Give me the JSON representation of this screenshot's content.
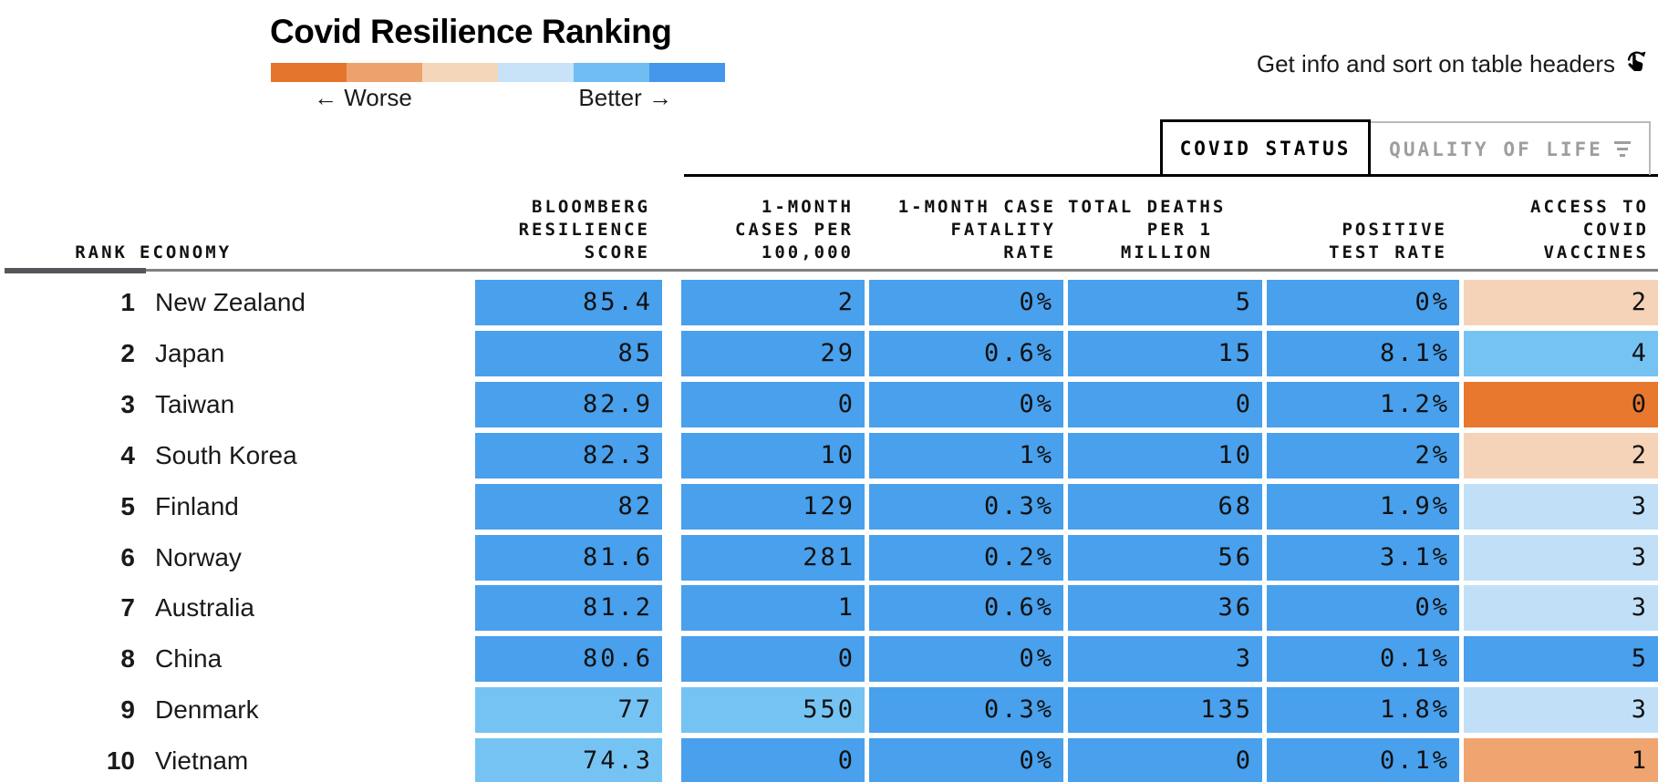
{
  "title": "Covid Resilience Ranking",
  "hint": {
    "text": "Get info and sort on table headers"
  },
  "legend": {
    "worse_arrow": "←",
    "worse_label": "Worse",
    "better_label": "Better",
    "better_arrow": "→",
    "scale_colors": [
      "#e4752c",
      "#eda26d",
      "#f4d6ba",
      "#c8e2f7",
      "#6fbdf2",
      "#4597eb"
    ]
  },
  "tabs": {
    "covid_status": {
      "label": "COVID STATUS",
      "active": true
    },
    "quality_of_life": {
      "label": "QUALITY OF LIFE",
      "active": false
    }
  },
  "palette": {
    "b": "#49a0ec",
    "mb": "#75c3f3",
    "lb": "#c1e0f8",
    "peach": "#f5d3b8",
    "mo": "#f0a470",
    "do": "#e7782e"
  },
  "chart_data": {
    "type": "table",
    "title": "Covid Resilience Ranking",
    "legend": "diverging color scale: orange = worse, blue = better",
    "tabs": [
      "COVID STATUS",
      "QUALITY OF LIFE"
    ],
    "active_tab": "COVID STATUS",
    "columns": {
      "rank": "RANK",
      "economy": "ECONOMY",
      "score": [
        "BLOOMBERG",
        "RESILIENCE",
        "SCORE"
      ],
      "cases": [
        "1-MONTH",
        "CASES PER",
        "100,000"
      ],
      "fatality": [
        "1-MONTH CASE",
        "FATALITY",
        "RATE"
      ],
      "deaths": [
        "TOTAL DEATHS",
        "PER 1",
        "MILLION"
      ],
      "positive": [
        "POSITIVE",
        "TEST RATE"
      ],
      "vaccines": [
        "ACCESS TO",
        "COVID",
        "VACCINES"
      ]
    },
    "rows": [
      {
        "rank": "1",
        "economy": "New Zealand",
        "score": "85.4",
        "cases": "2",
        "fatality": "0%",
        "deaths": "5",
        "positive": "0%",
        "vaccines": "2",
        "colors": {
          "score": "b",
          "cases": "b",
          "fatality": "b",
          "deaths": "b",
          "positive": "b",
          "vaccines": "peach"
        }
      },
      {
        "rank": "2",
        "economy": "Japan",
        "score": "85",
        "cases": "29",
        "fatality": "0.6%",
        "deaths": "15",
        "positive": "8.1%",
        "vaccines": "4",
        "colors": {
          "score": "b",
          "cases": "b",
          "fatality": "b",
          "deaths": "b",
          "positive": "b",
          "vaccines": "mb"
        }
      },
      {
        "rank": "3",
        "economy": "Taiwan",
        "score": "82.9",
        "cases": "0",
        "fatality": "0%",
        "deaths": "0",
        "positive": "1.2%",
        "vaccines": "0",
        "colors": {
          "score": "b",
          "cases": "b",
          "fatality": "b",
          "deaths": "b",
          "positive": "b",
          "vaccines": "do"
        }
      },
      {
        "rank": "4",
        "economy": "South Korea",
        "score": "82.3",
        "cases": "10",
        "fatality": "1%",
        "deaths": "10",
        "positive": "2%",
        "vaccines": "2",
        "colors": {
          "score": "b",
          "cases": "b",
          "fatality": "b",
          "deaths": "b",
          "positive": "b",
          "vaccines": "peach"
        }
      },
      {
        "rank": "5",
        "economy": "Finland",
        "score": "82",
        "cases": "129",
        "fatality": "0.3%",
        "deaths": "68",
        "positive": "1.9%",
        "vaccines": "3",
        "colors": {
          "score": "b",
          "cases": "b",
          "fatality": "b",
          "deaths": "b",
          "positive": "b",
          "vaccines": "lb"
        }
      },
      {
        "rank": "6",
        "economy": "Norway",
        "score": "81.6",
        "cases": "281",
        "fatality": "0.2%",
        "deaths": "56",
        "positive": "3.1%",
        "vaccines": "3",
        "colors": {
          "score": "b",
          "cases": "b",
          "fatality": "b",
          "deaths": "b",
          "positive": "b",
          "vaccines": "lb"
        }
      },
      {
        "rank": "7",
        "economy": "Australia",
        "score": "81.2",
        "cases": "1",
        "fatality": "0.6%",
        "deaths": "36",
        "positive": "0%",
        "vaccines": "3",
        "colors": {
          "score": "b",
          "cases": "b",
          "fatality": "b",
          "deaths": "b",
          "positive": "b",
          "vaccines": "lb"
        }
      },
      {
        "rank": "8",
        "economy": "China",
        "score": "80.6",
        "cases": "0",
        "fatality": "0%",
        "deaths": "3",
        "positive": "0.1%",
        "vaccines": "5",
        "colors": {
          "score": "b",
          "cases": "b",
          "fatality": "b",
          "deaths": "b",
          "positive": "b",
          "vaccines": "b"
        }
      },
      {
        "rank": "9",
        "economy": "Denmark",
        "score": "77",
        "cases": "550",
        "fatality": "0.3%",
        "deaths": "135",
        "positive": "1.8%",
        "vaccines": "3",
        "colors": {
          "score": "mb",
          "cases": "mb",
          "fatality": "b",
          "deaths": "b",
          "positive": "b",
          "vaccines": "lb"
        }
      },
      {
        "rank": "10",
        "economy": "Vietnam",
        "score": "74.3",
        "cases": "0",
        "fatality": "0%",
        "deaths": "0",
        "positive": "0.1%",
        "vaccines": "1",
        "colors": {
          "score": "mb",
          "cases": "b",
          "fatality": "b",
          "deaths": "b",
          "positive": "b",
          "vaccines": "mo"
        }
      }
    ]
  }
}
